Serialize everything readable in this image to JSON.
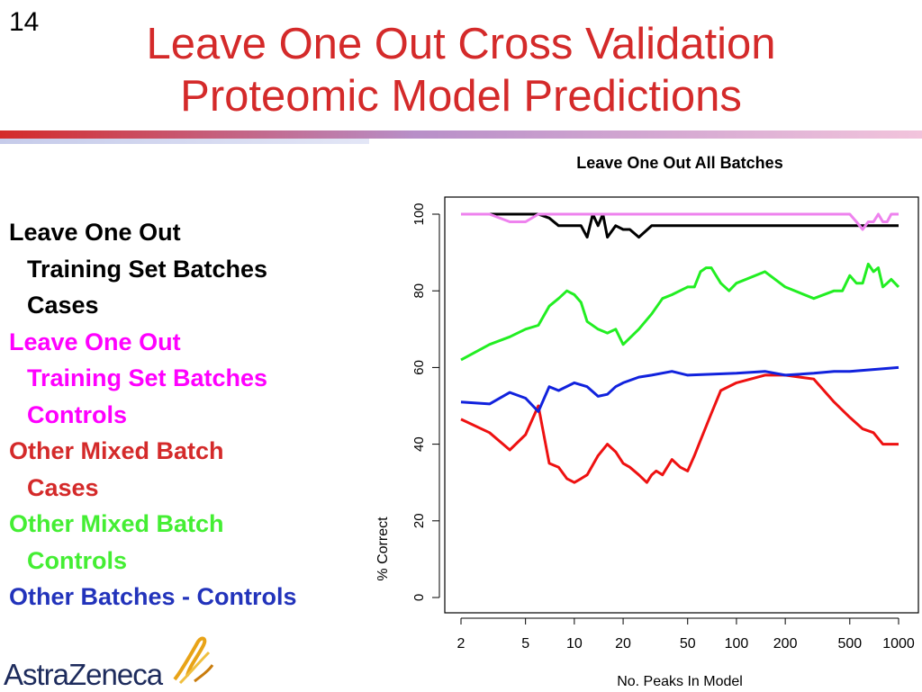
{
  "slide": {
    "number": "14",
    "title_line1": "Leave One Out Cross Validation",
    "title_line2": "Proteomic Model Predictions"
  },
  "legend_entries": [
    {
      "line1": "Leave One Out",
      "line2": "Training Set Batches",
      "line3": "Cases",
      "color": "#000000"
    },
    {
      "line1": "Leave One Out",
      "line2": "Training Set Batches",
      "line3": "Controls",
      "color": "#ff00ff"
    },
    {
      "line1": "Other Mixed Batch",
      "line2": "Cases",
      "color": "#d42a2a"
    },
    {
      "line1": "Other Mixed Batch",
      "line2": "Controls",
      "color": "#44ee33"
    },
    {
      "line1": "Other Batches - Controls",
      "color": "#2233bb"
    }
  ],
  "logo": {
    "text": "AstraZeneca",
    "icon": "astrazeneca-swirl-icon"
  },
  "chart_data": {
    "type": "line",
    "title": "Leave One Out All Batches",
    "xlabel": "No. Peaks In Model",
    "ylabel": "% Correct",
    "x_scale": "log",
    "xlim": [
      2,
      1000
    ],
    "ylim": [
      0,
      100
    ],
    "x_ticks": [
      2,
      5,
      10,
      20,
      50,
      100,
      200,
      500,
      1000
    ],
    "y_ticks": [
      0,
      20,
      40,
      60,
      80,
      100
    ],
    "grid": false,
    "series": [
      {
        "color": "#000000",
        "x": [
          2,
          3,
          4,
          5,
          6,
          7,
          8,
          9,
          10,
          11,
          12,
          13,
          14,
          15,
          16,
          18,
          20,
          22,
          25,
          30,
          40,
          50,
          100,
          200,
          500,
          1000
        ],
        "y": [
          100,
          100,
          100,
          100,
          100,
          99,
          97,
          97,
          97,
          97,
          94,
          100,
          97,
          100,
          94,
          97,
          96,
          96,
          94,
          97,
          97,
          97,
          97,
          97,
          97,
          97
        ]
      },
      {
        "color": "#ee82ee",
        "x": [
          2,
          3,
          4,
          5,
          6,
          7,
          8,
          10,
          20,
          50,
          100,
          200,
          400,
          500,
          550,
          600,
          650,
          700,
          750,
          800,
          850,
          900,
          1000
        ],
        "y": [
          100,
          100,
          98,
          98,
          100,
          100,
          100,
          100,
          100,
          100,
          100,
          100,
          100,
          100,
          98,
          96,
          98,
          98,
          100,
          98,
          98,
          100,
          100
        ]
      },
      {
        "color": "#ee1111",
        "x": [
          2,
          3,
          4,
          5,
          6,
          7,
          8,
          9,
          10,
          11,
          12,
          14,
          16,
          18,
          20,
          22,
          25,
          28,
          30,
          32,
          35,
          40,
          45,
          50,
          55,
          60,
          70,
          80,
          100,
          150,
          200,
          300,
          400,
          500,
          600,
          700,
          800,
          1000
        ],
        "y": [
          46.5,
          43,
          38.5,
          42.5,
          50,
          35,
          34,
          31,
          30,
          31,
          32,
          37,
          40,
          38,
          35,
          34,
          32,
          30,
          32,
          33,
          32,
          36,
          34,
          33,
          37,
          41,
          48,
          54,
          56,
          58,
          58,
          57,
          51,
          47,
          44,
          43,
          40,
          40
        ]
      },
      {
        "color": "#22ee22",
        "x": [
          2,
          3,
          4,
          5,
          6,
          7,
          8,
          9,
          10,
          11,
          12,
          14,
          16,
          18,
          20,
          25,
          30,
          35,
          40,
          50,
          55,
          60,
          65,
          70,
          80,
          90,
          100,
          150,
          200,
          300,
          400,
          450,
          500,
          550,
          600,
          650,
          700,
          750,
          800,
          850,
          900,
          1000
        ],
        "y": [
          62,
          66,
          68,
          70,
          71,
          76,
          78,
          80,
          79,
          77,
          72,
          70,
          69,
          70,
          66,
          70,
          74,
          78,
          79,
          81,
          81,
          85,
          86,
          86,
          82,
          80,
          82,
          85,
          81,
          78,
          80,
          80,
          84,
          82,
          82,
          87,
          85,
          86,
          81,
          82,
          83,
          81
        ]
      },
      {
        "color": "#1122dd",
        "x": [
          2,
          3,
          4,
          5,
          6,
          7,
          8,
          10,
          12,
          14,
          16,
          18,
          20,
          25,
          30,
          40,
          50,
          100,
          150,
          200,
          300,
          400,
          500,
          1000
        ],
        "y": [
          51,
          50.5,
          53.5,
          52,
          48.5,
          55,
          54,
          56,
          55,
          52.5,
          53,
          55,
          56,
          57.5,
          58,
          59,
          58,
          58.5,
          59,
          58,
          58.5,
          59,
          59,
          60
        ]
      }
    ]
  }
}
